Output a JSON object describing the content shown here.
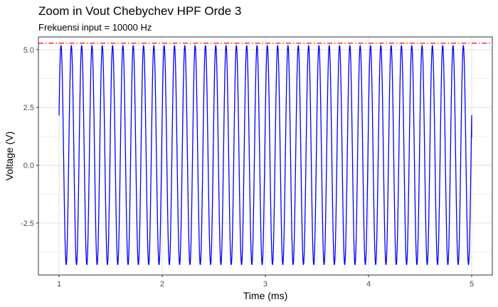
{
  "chart_data": {
    "type": "line",
    "title": "Zoom in Vout Chebychev HPF Orde 3",
    "subtitle": "Frekuensi input = 10000 Hz",
    "xlabel": "Time (ms)",
    "ylabel": "Voltage (V)",
    "xlim": [
      0.8,
      5.2
    ],
    "ylim": [
      -4.75,
      5.55
    ],
    "x_ticks": [
      1,
      2,
      3,
      4,
      5
    ],
    "x_tick_labels": [
      "1",
      "2",
      "3",
      "4",
      "5"
    ],
    "y_ticks": [
      -2.5,
      0,
      2.5,
      5
    ],
    "y_tick_labels": [
      "-2.5",
      "0.0",
      "2.5",
      "5.0"
    ],
    "grid": true,
    "series": [
      {
        "color": "#0000ff",
        "frequency_hz": 10000,
        "x_range": [
          1,
          5
        ],
        "peak": 5.18,
        "trough": -4.3,
        "start_value": 2.15,
        "end_value": 1.2,
        "periods": 40
      }
    ],
    "reference_lines": [
      {
        "y": 5.28,
        "color": "#ff0000",
        "style": "dashdot"
      }
    ]
  }
}
